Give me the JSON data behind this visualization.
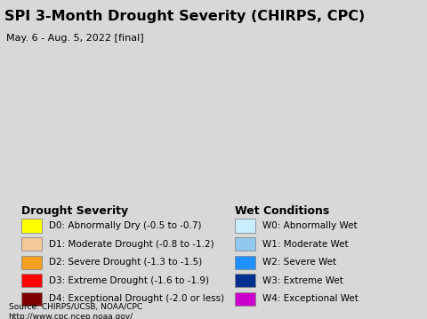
{
  "title": "SPI 3-Month Drought Severity (CHIRPS, CPC)",
  "subtitle": "May. 6 - Aug. 5, 2022 [final]",
  "map_bg_color": "#b8e8f0",
  "legend_bg_color": "#d8d8d8",
  "drought_labels": [
    "D0: Abnormally Dry (-0.5 to -0.7)",
    "D1: Moderate Drought (-0.8 to -1.2)",
    "D2: Severe Drought (-1.3 to -1.5)",
    "D3: Extreme Drought (-1.6 to -1.9)",
    "D4: Exceptional Drought (-2.0 or less)"
  ],
  "drought_colors": [
    "#ffff00",
    "#f5c897",
    "#f5a020",
    "#ff0000",
    "#800000"
  ],
  "wet_labels": [
    "W0: Abnormally Wet",
    "W1: Moderate Wet",
    "W2: Severe Wet",
    "W3: Extreme Wet",
    "W4: Exceptional Wet"
  ],
  "wet_colors": [
    "#c8eeff",
    "#90c8f0",
    "#1e90ff",
    "#003090",
    "#cc00cc"
  ],
  "drought_section_title": "Drought Severity",
  "wet_section_title": "Wet Conditions",
  "source_line1": "Source: CHIRPS/UCSB, NOAA/CPC",
  "source_line2": "http://www.cpc.ncep.noaa.gov/",
  "title_fontsize": 11.5,
  "subtitle_fontsize": 8,
  "legend_title_fontsize": 9,
  "legend_item_fontsize": 7.5,
  "source_fontsize": 6.5,
  "fig_width": 4.8,
  "fig_height": 3.59,
  "fig_dpi": 100
}
